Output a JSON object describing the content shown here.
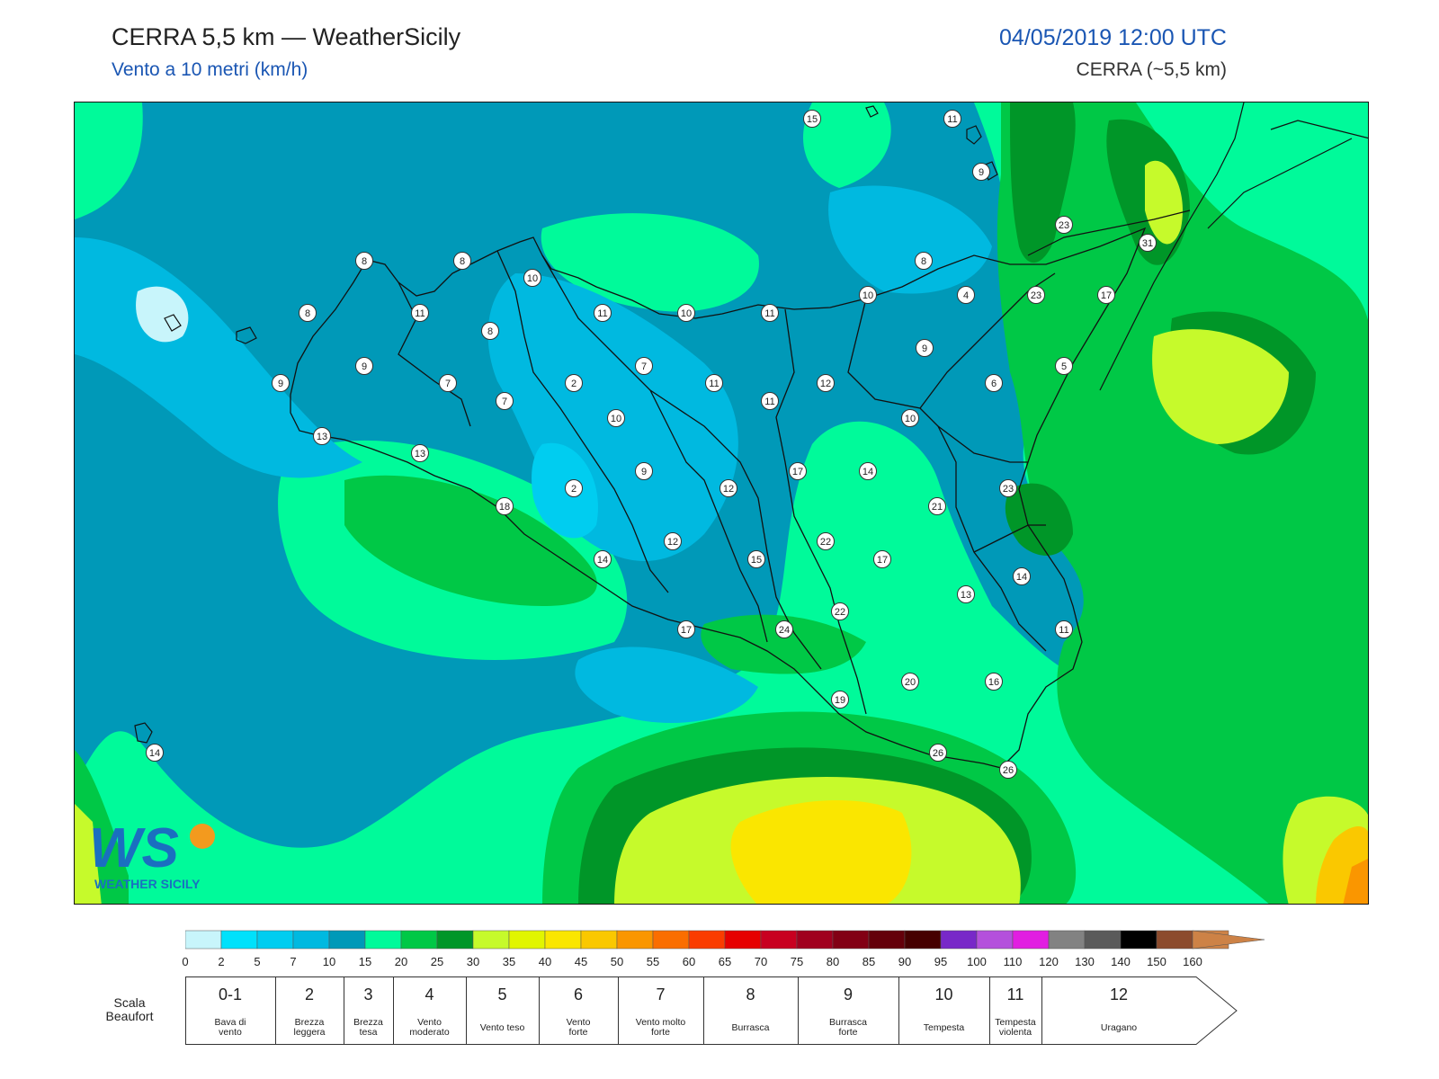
{
  "header": {
    "title": "CERRA 5,5 km — WeatherSicily",
    "subtitle": "Vento a 10 metri (km/h)",
    "datetime": "04/05/2019 12:00 UTC",
    "model": "CERRA (~5,5 km)"
  },
  "logo": {
    "text": "WS",
    "caption": "WEATHER SICILY",
    "icon": "weather-sicily-logo"
  },
  "map": {
    "stations": [
      {
        "v": "15"
      },
      {
        "v": "11"
      },
      {
        "v": "9"
      },
      {
        "v": "23"
      },
      {
        "v": "31"
      },
      {
        "v": "8"
      },
      {
        "v": "8"
      },
      {
        "v": "10"
      },
      {
        "v": "8"
      },
      {
        "v": "10"
      },
      {
        "v": "4"
      },
      {
        "v": "23"
      },
      {
        "v": "17"
      },
      {
        "v": "8"
      },
      {
        "v": "11"
      },
      {
        "v": "8"
      },
      {
        "v": "11"
      },
      {
        "v": "10"
      },
      {
        "v": "11"
      },
      {
        "v": "9"
      },
      {
        "v": "9"
      },
      {
        "v": "9"
      },
      {
        "v": "7"
      },
      {
        "v": "7"
      },
      {
        "v": "2"
      },
      {
        "v": "7"
      },
      {
        "v": "11"
      },
      {
        "v": "11"
      },
      {
        "v": "12"
      },
      {
        "v": "6"
      },
      {
        "v": "5"
      },
      {
        "v": "10"
      },
      {
        "v": "10"
      },
      {
        "v": "13"
      },
      {
        "v": "13"
      },
      {
        "v": "9"
      },
      {
        "v": "2"
      },
      {
        "v": "12"
      },
      {
        "v": "17"
      },
      {
        "v": "14"
      },
      {
        "v": "21"
      },
      {
        "v": "23"
      },
      {
        "v": "18"
      },
      {
        "v": "12"
      },
      {
        "v": "22"
      },
      {
        "v": "14"
      },
      {
        "v": "15"
      },
      {
        "v": "17"
      },
      {
        "v": "14"
      },
      {
        "v": "13"
      },
      {
        "v": "17"
      },
      {
        "v": "24"
      },
      {
        "v": "22"
      },
      {
        "v": "11"
      },
      {
        "v": "20"
      },
      {
        "v": "16"
      },
      {
        "v": "19"
      },
      {
        "v": "26"
      },
      {
        "v": "26"
      },
      {
        "v": "14"
      }
    ]
  },
  "colorbar": {
    "colors": [
      "#c8f5fb",
      "#00e1fb",
      "#00cdf0",
      "#00b9e0",
      "#0099b8",
      "#00fa9a",
      "#00c846",
      "#009628",
      "#c6fa2b",
      "#e1f500",
      "#fae600",
      "#fac800",
      "#fa9600",
      "#fa6e00",
      "#fa3c00",
      "#e60000",
      "#c80020",
      "#a0001e",
      "#820014",
      "#64000a",
      "#460000",
      "#7828c8",
      "#b450dc",
      "#e11ee1",
      "#828282",
      "#5a5a5a",
      "#000000",
      "#8c4b2d",
      "#cd8246"
    ],
    "labels": [
      "0",
      "2",
      "5",
      "7",
      "10",
      "15",
      "20",
      "25",
      "30",
      "35",
      "40",
      "45",
      "50",
      "55",
      "60",
      "65",
      "70",
      "75",
      "80",
      "85",
      "90",
      "95",
      "100",
      "110",
      "120",
      "130",
      "140",
      "150",
      "160"
    ]
  },
  "beaufort": {
    "title": "Scala Beaufort",
    "cells": [
      {
        "num": "0-1",
        "desc": [
          "Bava di",
          "vento"
        ]
      },
      {
        "num": "2",
        "desc": [
          "Brezza",
          "leggera"
        ]
      },
      {
        "num": "3",
        "desc": [
          "Brezza",
          "tesa"
        ]
      },
      {
        "num": "4",
        "desc": [
          "Vento",
          "moderato"
        ]
      },
      {
        "num": "5",
        "desc": [
          "Vento teso"
        ]
      },
      {
        "num": "6",
        "desc": [
          "Vento",
          "forte"
        ]
      },
      {
        "num": "7",
        "desc": [
          "Vento molto",
          "forte"
        ]
      },
      {
        "num": "8",
        "desc": [
          "Burrasca"
        ]
      },
      {
        "num": "9",
        "desc": [
          "Burrasca",
          "forte"
        ]
      },
      {
        "num": "10",
        "desc": [
          "Tempesta"
        ]
      },
      {
        "num": "11",
        "desc": [
          "Tempesta",
          "violenta"
        ]
      },
      {
        "num": "12",
        "desc": [
          "Uragano"
        ]
      }
    ]
  }
}
